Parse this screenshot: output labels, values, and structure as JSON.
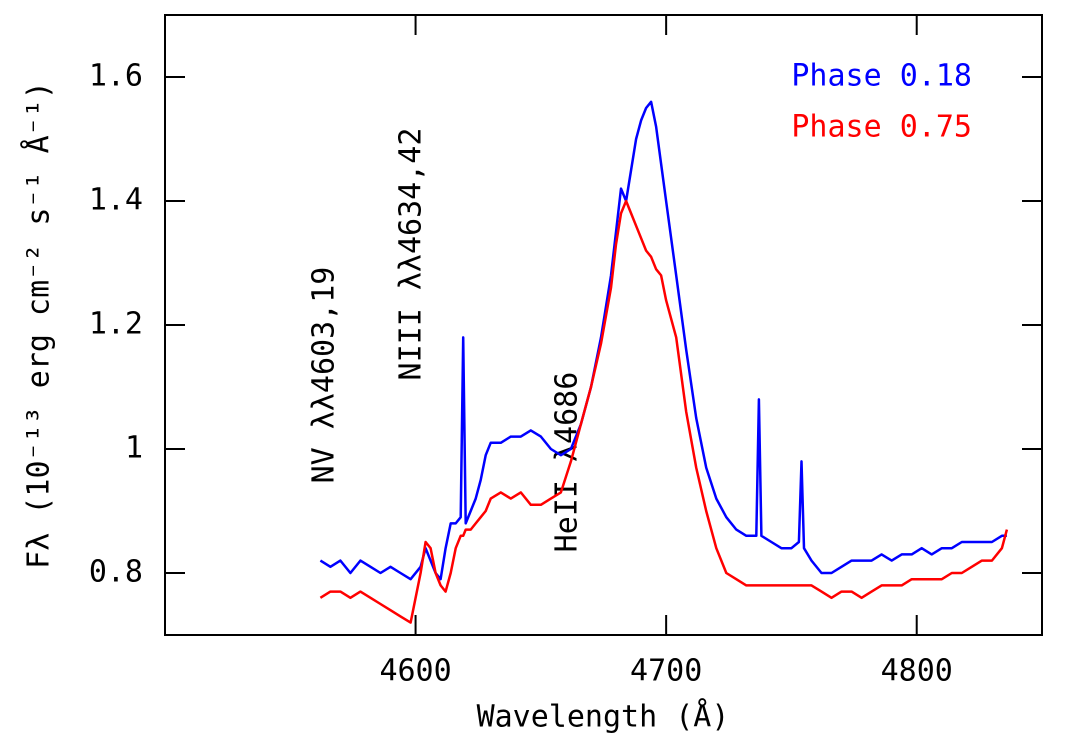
{
  "chart_data": {
    "type": "line",
    "xlabel": "Wavelength (Å)",
    "ylabel": "Fλ (10⁻¹³ erg cm⁻² s⁻¹ Å⁻¹)",
    "xlim": [
      4500,
      4850
    ],
    "xticks": [
      4600,
      4700,
      4800
    ],
    "ylim": [
      0.7,
      1.7
    ],
    "yticks": [
      0.8,
      1,
      1.2,
      1.4,
      1.6
    ],
    "annotations": [
      "NV λλ4603,19",
      "NIII λλ4634,42",
      "HeII λ4686"
    ],
    "x": [
      4562,
      4566,
      4570,
      4574,
      4578,
      4582,
      4586,
      4590,
      4594,
      4598,
      4602,
      4604,
      4606,
      4608,
      4610,
      4612,
      4614,
      4616,
      4618,
      4619,
      4620,
      4622,
      4624,
      4626,
      4628,
      4630,
      4634,
      4638,
      4642,
      4646,
      4650,
      4654,
      4658,
      4662,
      4666,
      4670,
      4674,
      4678,
      4680,
      4682,
      4684,
      4686,
      4688,
      4690,
      4692,
      4694,
      4696,
      4698,
      4700,
      4704,
      4708,
      4712,
      4716,
      4720,
      4724,
      4728,
      4732,
      4736,
      4737,
      4738,
      4742,
      4746,
      4750,
      4753,
      4754,
      4755,
      4758,
      4762,
      4766,
      4770,
      4774,
      4778,
      4782,
      4786,
      4790,
      4794,
      4798,
      4802,
      4806,
      4810,
      4814,
      4818,
      4822,
      4826,
      4830,
      4834,
      4836
    ],
    "series": [
      {
        "name": "Phase 0.18",
        "color": "#0000ff",
        "values": [
          0.82,
          0.81,
          0.82,
          0.8,
          0.82,
          0.81,
          0.8,
          0.81,
          0.8,
          0.79,
          0.81,
          0.84,
          0.82,
          0.8,
          0.79,
          0.84,
          0.88,
          0.88,
          0.89,
          1.18,
          0.88,
          0.9,
          0.92,
          0.95,
          0.99,
          1.01,
          1.01,
          1.02,
          1.02,
          1.03,
          1.02,
          1.0,
          0.99,
          1.0,
          1.04,
          1.1,
          1.18,
          1.28,
          1.35,
          1.42,
          1.4,
          1.45,
          1.5,
          1.53,
          1.55,
          1.56,
          1.52,
          1.46,
          1.4,
          1.28,
          1.16,
          1.05,
          0.97,
          0.92,
          0.89,
          0.87,
          0.86,
          0.86,
          1.08,
          0.86,
          0.85,
          0.84,
          0.84,
          0.85,
          0.98,
          0.84,
          0.82,
          0.8,
          0.8,
          0.81,
          0.82,
          0.82,
          0.82,
          0.83,
          0.82,
          0.83,
          0.83,
          0.84,
          0.83,
          0.84,
          0.84,
          0.85,
          0.85,
          0.85,
          0.85,
          0.86,
          0.86
        ]
      },
      {
        "name": "Phase 0.75",
        "color": "#ff0000",
        "values": [
          0.76,
          0.77,
          0.77,
          0.76,
          0.77,
          0.76,
          0.75,
          0.74,
          0.73,
          0.72,
          0.8,
          0.85,
          0.84,
          0.8,
          0.78,
          0.77,
          0.8,
          0.84,
          0.86,
          0.86,
          0.87,
          0.87,
          0.88,
          0.89,
          0.9,
          0.92,
          0.93,
          0.92,
          0.93,
          0.91,
          0.91,
          0.92,
          0.93,
          0.98,
          1.04,
          1.1,
          1.17,
          1.26,
          1.33,
          1.38,
          1.4,
          1.38,
          1.36,
          1.34,
          1.32,
          1.31,
          1.29,
          1.28,
          1.24,
          1.18,
          1.06,
          0.97,
          0.9,
          0.84,
          0.8,
          0.79,
          0.78,
          0.78,
          0.78,
          0.78,
          0.78,
          0.78,
          0.78,
          0.78,
          0.78,
          0.78,
          0.78,
          0.77,
          0.76,
          0.77,
          0.77,
          0.76,
          0.77,
          0.78,
          0.78,
          0.78,
          0.79,
          0.79,
          0.79,
          0.79,
          0.8,
          0.8,
          0.81,
          0.82,
          0.82,
          0.84,
          0.87
        ]
      }
    ]
  }
}
